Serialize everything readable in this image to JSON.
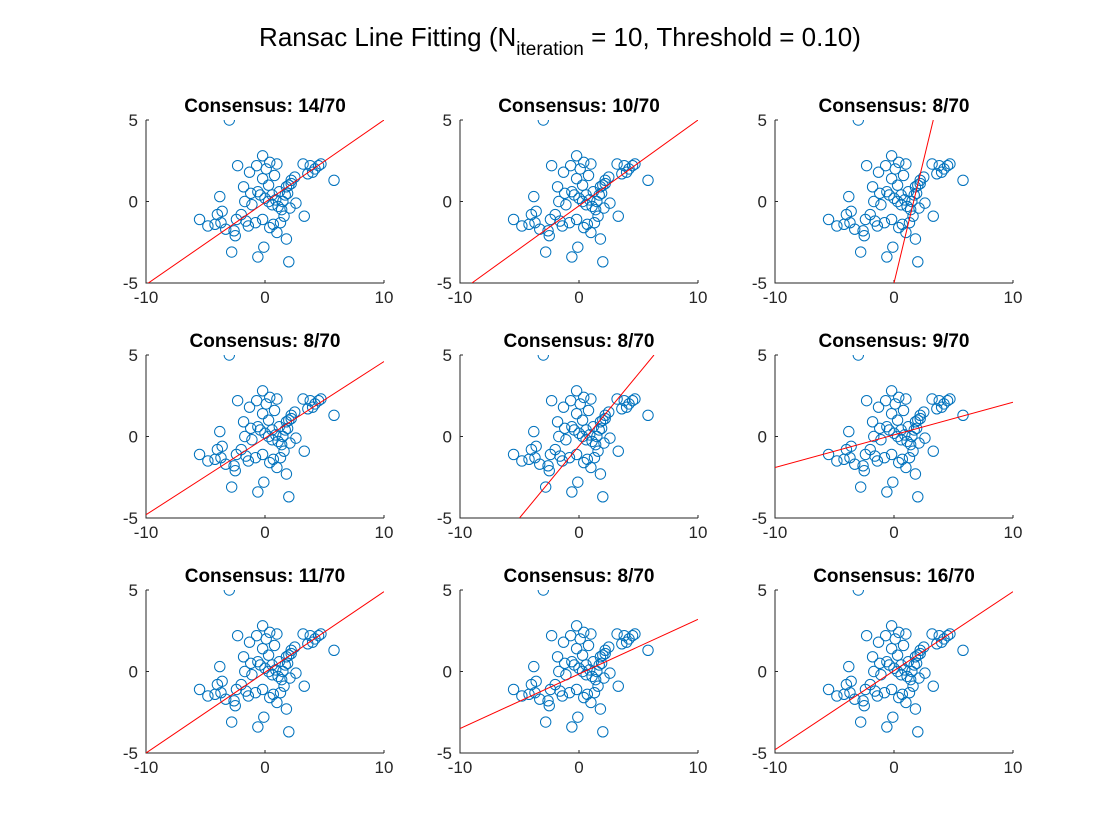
{
  "figure": {
    "title_main": "Ransac Line Fitting (N",
    "title_sub": "iteration",
    "title_rest": " = 10, Threshold = 0.10)"
  },
  "colors": {
    "points": "#0072BD",
    "fit_line": "#FF0000",
    "axis": "#262626"
  },
  "chart_data": {
    "type": "scatter",
    "xlim": [
      -10,
      10
    ],
    "ylim": [
      -5,
      5
    ],
    "xticks": [
      "-10",
      "0",
      "10"
    ],
    "yticks": [
      "5",
      "0",
      "-5"
    ],
    "grid": false,
    "marker": "open-circle",
    "points": [
      [
        -3.0,
        5.0
      ],
      [
        -0.2,
        2.8
      ],
      [
        0.4,
        2.4
      ],
      [
        1.0,
        2.3
      ],
      [
        2.2,
        1.3
      ],
      [
        2.5,
        1.5
      ],
      [
        3.2,
        2.3
      ],
      [
        3.8,
        2.2
      ],
      [
        4.2,
        2.0
      ],
      [
        4.5,
        2.2
      ],
      [
        4.7,
        2.3
      ],
      [
        4.0,
        1.8
      ],
      [
        3.6,
        1.7
      ],
      [
        5.8,
        1.3
      ],
      [
        -2.3,
        2.2
      ],
      [
        -1.3,
        1.8
      ],
      [
        -0.7,
        2.2
      ],
      [
        0.1,
        2.0
      ],
      [
        0.8,
        1.6
      ],
      [
        0.3,
        1.0
      ],
      [
        -0.2,
        1.4
      ],
      [
        0.6,
        0.4
      ],
      [
        1.2,
        0.6
      ],
      [
        1.8,
        0.9
      ],
      [
        2.0,
        1.0
      ],
      [
        1.7,
        0.4
      ],
      [
        2.2,
        1.1
      ],
      [
        1.5,
        0.0
      ],
      [
        1.9,
        0.5
      ],
      [
        -1.8,
        0.9
      ],
      [
        -1.2,
        0.5
      ],
      [
        -0.6,
        0.6
      ],
      [
        -1.7,
        0.0
      ],
      [
        -1.1,
        -0.2
      ],
      [
        -0.4,
        0.4
      ],
      [
        0.0,
        0.2
      ],
      [
        0.3,
        0.0
      ],
      [
        0.6,
        -0.2
      ],
      [
        0.9,
        0.1
      ],
      [
        1.1,
        -0.3
      ],
      [
        1.4,
        -0.5
      ],
      [
        1.6,
        -0.9
      ],
      [
        2.1,
        -0.4
      ],
      [
        2.6,
        -0.1
      ],
      [
        3.3,
        -0.9
      ],
      [
        -3.8,
        0.3
      ],
      [
        -3.6,
        -0.6
      ],
      [
        -3.7,
        -1.3
      ],
      [
        -4.2,
        -1.4
      ],
      [
        -4.8,
        -1.5
      ],
      [
        -5.5,
        -1.1
      ],
      [
        -3.3,
        -1.7
      ],
      [
        -2.4,
        -1.1
      ],
      [
        -2.6,
        -1.8
      ],
      [
        -2.5,
        -2.1
      ],
      [
        -2.0,
        -0.8
      ],
      [
        -1.6,
        -1.2
      ],
      [
        -1.4,
        -1.5
      ],
      [
        -0.8,
        -1.3
      ],
      [
        -0.2,
        -1.1
      ],
      [
        0.4,
        -1.6
      ],
      [
        0.7,
        -1.4
      ],
      [
        1.0,
        -1.9
      ],
      [
        -2.8,
        -3.1
      ],
      [
        -0.6,
        -3.4
      ],
      [
        -0.1,
        -2.8
      ],
      [
        1.3,
        -1.3
      ],
      [
        1.8,
        -2.3
      ],
      [
        2.0,
        -3.7
      ],
      [
        -4.0,
        -0.8
      ]
    ],
    "panels": [
      {
        "title": "Consensus: 14/70",
        "line": [
          [
            -10,
            -5.1
          ],
          [
            10,
            5.0
          ]
        ]
      },
      {
        "title": "Consensus: 10/70",
        "line": [
          [
            -9.0,
            -5.0
          ],
          [
            10,
            5.0
          ]
        ]
      },
      {
        "title": "Consensus: 8/70",
        "line": [
          [
            0.0,
            -5.0
          ],
          [
            3.3,
            5.0
          ]
        ]
      },
      {
        "title": "Consensus: 8/70",
        "line": [
          [
            -10,
            -4.8
          ],
          [
            10,
            4.6
          ]
        ]
      },
      {
        "title": "Consensus: 8/70",
        "line": [
          [
            -5.0,
            -5.0
          ],
          [
            6.3,
            5.0
          ]
        ]
      },
      {
        "title": "Consensus: 9/70",
        "line": [
          [
            -10,
            -1.9
          ],
          [
            10,
            2.1
          ]
        ]
      },
      {
        "title": "Consensus: 11/70",
        "line": [
          [
            -10,
            -5.0
          ],
          [
            10,
            4.9
          ]
        ]
      },
      {
        "title": "Consensus: 8/70",
        "line": [
          [
            -10,
            -3.5
          ],
          [
            10,
            3.2
          ]
        ]
      },
      {
        "title": "Consensus: 16/70",
        "line": [
          [
            -10,
            -4.8
          ],
          [
            10,
            4.9
          ]
        ]
      }
    ]
  }
}
